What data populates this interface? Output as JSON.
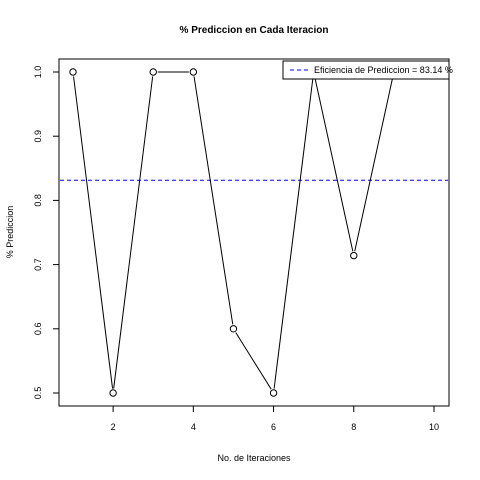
{
  "chart_data": {
    "type": "line",
    "title": "% Prediccion en Cada Iteracion",
    "xlabel": "No. de Iteraciones",
    "ylabel": "% Prediccion",
    "x": [
      1,
      2,
      3,
      4,
      5,
      6,
      7,
      8,
      9,
      10
    ],
    "y": [
      1.0,
      0.5,
      1.0,
      1.0,
      0.6,
      0.5,
      1.0,
      0.714,
      1.0,
      1.0
    ],
    "xlim": [
      1,
      10
    ],
    "ylim": [
      0.5,
      1.0
    ],
    "x_ticks": [
      2,
      4,
      6,
      8,
      10
    ],
    "y_ticks": [
      0.5,
      0.6,
      0.7,
      0.8,
      0.9,
      1.0
    ],
    "x_tick_labels": [
      "2",
      "4",
      "6",
      "8",
      "10"
    ],
    "y_tick_labels": [
      "0.5",
      "0.6",
      "0.7",
      "0.8",
      "0.9",
      "1.0"
    ],
    "series": [
      {
        "values": [
          1.0,
          0.5,
          1.0,
          1.0,
          0.6,
          0.5,
          1.0,
          0.714,
          1.0,
          1.0
        ],
        "color": "#000000",
        "marker": "open-circle"
      }
    ],
    "reference_line": {
      "y": 0.8314,
      "color": "#0000ff",
      "style": "dashed",
      "legend_label": "Eficiencia de Prediccion = 83.14 %"
    },
    "legend_position": "top-right",
    "grid": false
  }
}
